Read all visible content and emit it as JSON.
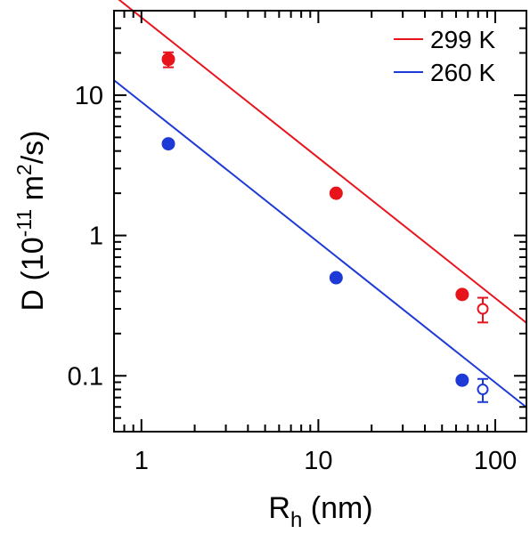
{
  "chart_data": {
    "type": "scatter",
    "title": "",
    "xlabel": {
      "base": "R",
      "sub": "h",
      "rest": " (nm)"
    },
    "ylabel": {
      "pre": "D (10",
      "exp1": "-11",
      "mid": " m",
      "exp2": "2",
      "post": "/s)"
    },
    "x_scale": "log",
    "y_scale": "log",
    "xlim": [
      0.7,
      150
    ],
    "ylim": [
      0.04,
      40
    ],
    "x_ticks": [
      {
        "value": 1,
        "label": "1"
      },
      {
        "value": 10,
        "label": "10"
      },
      {
        "value": 100,
        "label": "100"
      }
    ],
    "y_ticks": [
      {
        "value": 0.1,
        "label": "0.1"
      },
      {
        "value": 1,
        "label": "1"
      },
      {
        "value": 10,
        "label": "10"
      }
    ],
    "grid": false,
    "legend_position": "top-right",
    "series": [
      {
        "name": "299 K",
        "color": "#e8141c",
        "points": [
          {
            "x": 1.42,
            "y": 18.0,
            "err": 2.2,
            "filled": true
          },
          {
            "x": 12.6,
            "y": 2.0,
            "err": 0,
            "filled": true
          },
          {
            "x": 65,
            "y": 0.38,
            "err": 0,
            "filled": true
          },
          {
            "x": 85,
            "y": 0.3,
            "err": 0.06,
            "filled": false
          }
        ],
        "fit": {
          "slope": -1.0,
          "x0": 1.42,
          "y0": 25.2
        }
      },
      {
        "name": "260 K",
        "color": "#1e3ad6",
        "points": [
          {
            "x": 1.42,
            "y": 4.5,
            "err": 0,
            "filled": true
          },
          {
            "x": 12.6,
            "y": 0.5,
            "err": 0,
            "filled": true
          },
          {
            "x": 65,
            "y": 0.093,
            "err": 0,
            "filled": true
          },
          {
            "x": 85,
            "y": 0.08,
            "err": 0.015,
            "filled": false
          }
        ],
        "fit": {
          "slope": -1.0,
          "x0": 1.42,
          "y0": 6.3
        }
      }
    ]
  }
}
